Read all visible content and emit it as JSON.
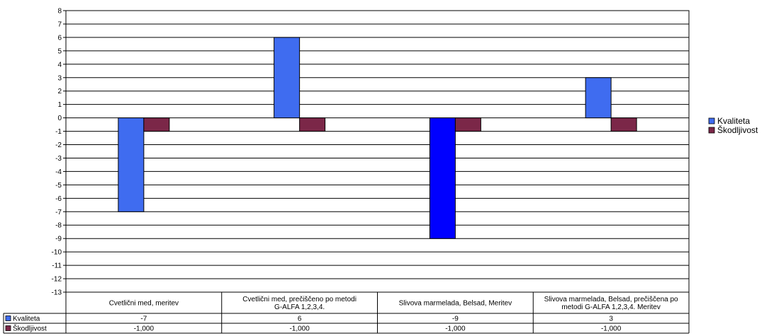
{
  "chart_data": {
    "type": "bar",
    "title": "",
    "xlabel": "",
    "ylabel": "",
    "ylim": [
      -13,
      8
    ],
    "y_ticks": [
      "8",
      "7",
      "6",
      "5",
      "4",
      "3",
      "2",
      "1",
      "0",
      "-1",
      "-2",
      "-3",
      "-4",
      "-5",
      "-6",
      "-7",
      "-8",
      "-9",
      "-10",
      "-11",
      "-12",
      "-13"
    ],
    "grid": true,
    "legend_position": "right",
    "categories": [
      "Cvetlični med, meritev",
      "Cvetlični med, prečiščeno po metodi G-ALFA 1,2,3,4.",
      "Slivova marmelada, Belsad, Meritev",
      "Slivova marmelada, Belsad, prečiščena po metodi G-ALFA 1,2,3,4. Meritev"
    ],
    "series": [
      {
        "name": "Kvaliteta",
        "values": [
          -7,
          6,
          -9,
          3
        ],
        "table_values": [
          "-7",
          "6",
          "-9",
          "3"
        ],
        "color": "#3f6cf0"
      },
      {
        "name": "Škodljivost",
        "values": [
          -1,
          -1,
          -1,
          -1
        ],
        "table_values": [
          "-1,000",
          "-1,000",
          "-1,000",
          "-1,000"
        ],
        "color": "#7b2748"
      }
    ],
    "highlight_color": "#0000ff"
  }
}
